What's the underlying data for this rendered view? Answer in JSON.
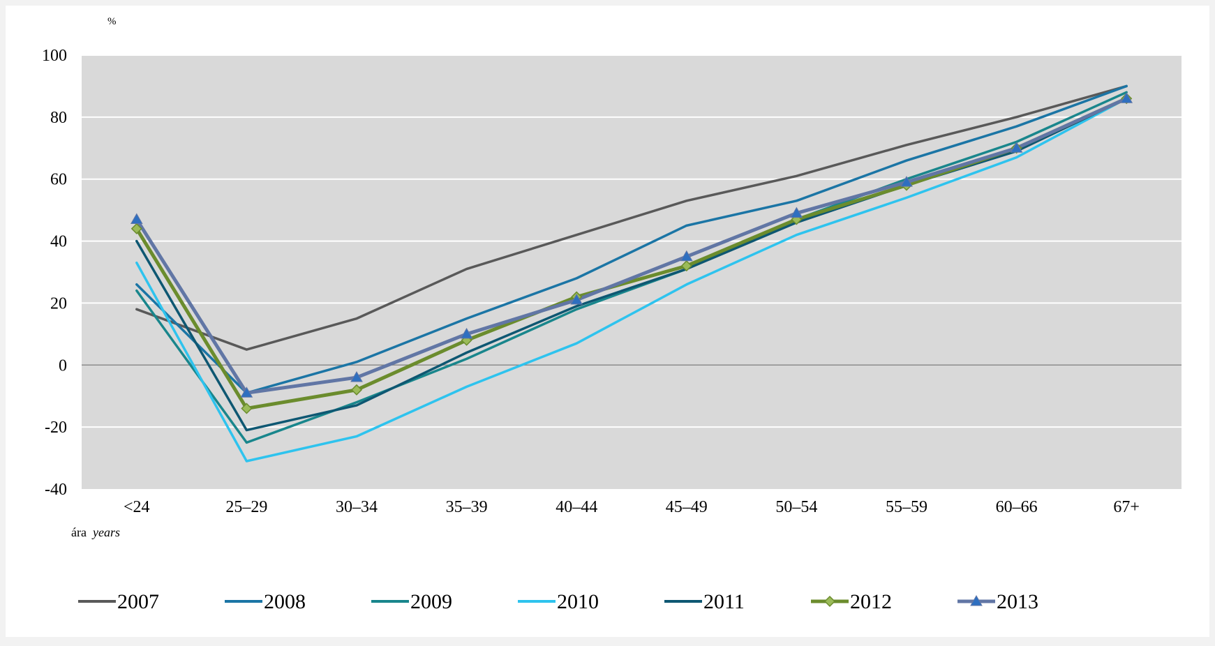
{
  "chart_data": {
    "type": "line",
    "unit_label": "%",
    "xlabel_main": "ára",
    "xlabel_en": "years",
    "categories": [
      "<24",
      "25–29",
      "30–34",
      "35–39",
      "40–44",
      "45–49",
      "50–54",
      "55–59",
      "60–66",
      "67+"
    ],
    "ylim": [
      -40,
      100
    ],
    "yticks": [
      100,
      80,
      60,
      40,
      20,
      0,
      -20,
      -40
    ],
    "grid": true,
    "legend_position": "bottom",
    "series": [
      {
        "name": "2007",
        "color": "#595959",
        "marker": "none",
        "values": [
          18,
          5,
          15,
          31,
          42,
          53,
          61,
          71,
          80,
          90
        ]
      },
      {
        "name": "2008",
        "color": "#1b75a5",
        "marker": "none",
        "values": [
          26,
          -9,
          1,
          15,
          28,
          45,
          53,
          66,
          77,
          90
        ]
      },
      {
        "name": "2009",
        "color": "#19868c",
        "marker": "none",
        "values": [
          24,
          -25,
          -12,
          2,
          18,
          31,
          47,
          60,
          72,
          88
        ]
      },
      {
        "name": "2010",
        "color": "#2ec3ee",
        "marker": "none",
        "values": [
          33,
          -31,
          -23,
          -7,
          7,
          26,
          42,
          54,
          67,
          86
        ]
      },
      {
        "name": "2011",
        "color": "#0e5772",
        "marker": "none",
        "values": [
          40,
          -21,
          -13,
          4,
          19,
          31,
          46,
          58,
          69,
          86
        ]
      },
      {
        "name": "2012",
        "color": "#6b8c2d",
        "marker": "diamond",
        "marker_fill": "#9bbb59",
        "values": [
          44,
          -14,
          -8,
          8,
          22,
          32,
          47,
          58,
          70,
          86
        ]
      },
      {
        "name": "2013",
        "color": "#6176a5",
        "marker": "triangle",
        "marker_fill": "#2e6fc0",
        "values": [
          47,
          -9,
          -4,
          10,
          21,
          35,
          49,
          59,
          70,
          86
        ]
      }
    ]
  }
}
